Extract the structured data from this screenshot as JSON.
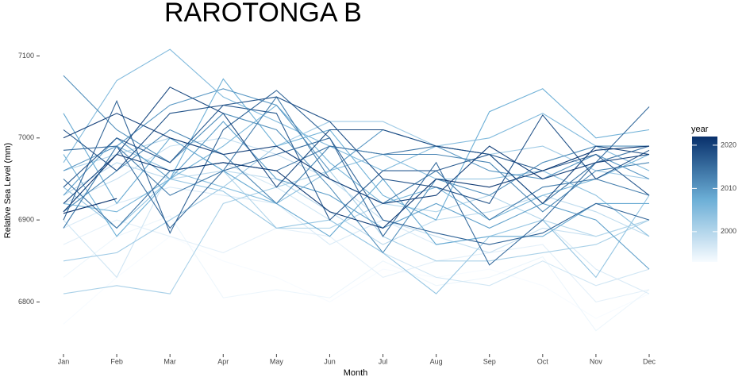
{
  "chart_data": {
    "type": "line",
    "title": "RAROTONGA B",
    "xlabel": "Month",
    "ylabel": "Relative Sea Level (mm)",
    "categories": [
      "Jan",
      "Feb",
      "Mar",
      "Apr",
      "May",
      "Jun",
      "Jul",
      "Aug",
      "Sep",
      "Oct",
      "Nov",
      "Dec"
    ],
    "ylim": [
      6752,
      7115
    ],
    "yticks": [
      6800,
      6900,
      7000,
      7100
    ],
    "colorbar": {
      "title": "year",
      "clim": [
        1993,
        2022
      ],
      "ticks": [
        2000,
        2010,
        2020
      ],
      "colors": [
        "#f7fbff",
        "#6baed6",
        "#08306b"
      ]
    },
    "series": [
      {
        "year": 1993,
        "values": [
          6773,
          6830,
          6880,
          6850,
          6830,
          6800,
          6840,
          6830,
          6840,
          6820,
          6780,
          6810
        ]
      },
      {
        "year": 1994,
        "values": [
          6830,
          6880,
          6905,
          6805,
          6815,
          6805,
          6850,
          6820,
          6830,
          6855,
          6765,
          6815
        ]
      },
      {
        "year": 1995,
        "values": [
          6870,
          6900,
          6880,
          6860,
          6890,
          6880,
          6830,
          6850,
          6860,
          6870,
          6800,
          6815
        ]
      },
      {
        "year": 1996,
        "values": [
          6890,
          6920,
          6940,
          6930,
          6920,
          6870,
          6900,
          6870,
          6880,
          6900,
          6840,
          6810
        ]
      },
      {
        "year": 1997,
        "values": [
          6900,
          6830,
          6960,
          6970,
          6940,
          6900,
          6860,
          6830,
          6820,
          6850,
          6820,
          6840
        ]
      },
      {
        "year": 1998,
        "values": [
          6920,
          6950,
          6990,
          7000,
          6980,
          6950,
          6900,
          6880,
          6860,
          6890,
          6880,
          6900
        ]
      },
      {
        "year": 1999,
        "values": [
          6930,
          6970,
          6950,
          6960,
          6950,
          6910,
          6870,
          6900,
          6910,
          6930,
          6910,
          6880
        ]
      },
      {
        "year": 2000,
        "values": [
          6960,
          6980,
          7000,
          6960,
          6890,
          6890,
          6920,
          6910,
          6930,
          6900,
          6880,
          6900
        ]
      },
      {
        "year": 2001,
        "values": [
          6810,
          6820,
          6810,
          6920,
          6940,
          6960,
          6880,
          6850,
          6850,
          6860,
          6870,
          6900
        ]
      },
      {
        "year": 2002,
        "values": [
          6850,
          6860,
          6900,
          6940,
          6990,
          7020,
          7020,
          6990,
          6980,
          6990,
          6960,
          6950
        ]
      },
      {
        "year": 2003,
        "values": [
          6940,
          6890,
          6950,
          6935,
          6890,
          6900,
          6860,
          6810,
          6880,
          6900,
          6830,
          6930
        ]
      },
      {
        "year": 2004,
        "values": [
          6890,
          6990,
          6960,
          6940,
          6920,
          6960,
          6980,
          6950,
          6950,
          6960,
          6930,
          6880
        ]
      },
      {
        "year": 2005,
        "values": [
          6970,
          7070,
          7108,
          7050,
          7020,
          6990,
          6960,
          6990,
          7000,
          7030,
          6990,
          6960
        ]
      },
      {
        "year": 2006,
        "values": [
          6920,
          6910,
          6950,
          6990,
          7040,
          6970,
          6920,
          6940,
          6900,
          6930,
          6950,
          6980
        ]
      },
      {
        "year": 2007,
        "values": [
          6980,
          6880,
          6950,
          7072,
          6990,
          7010,
          6930,
          6900,
          7032,
          7060,
          7000,
          7010
        ]
      },
      {
        "year": 2008,
        "values": [
          7030,
          6920,
          7000,
          6960,
          6920,
          6880,
          6950,
          6870,
          6880,
          6880,
          6920,
          6920
        ]
      },
      {
        "year": 2009,
        "values": [
          6930,
          7000,
          6950,
          7020,
          6950,
          6930,
          6890,
          6920,
          6890,
          6920,
          6900,
          6840
        ]
      },
      {
        "year": 2010,
        "values": [
          6960,
          6990,
          7040,
          7060,
          7040,
          6960,
          7010,
          6990,
          6960,
          6950,
          6980,
          6950
        ]
      },
      {
        "year": 2011,
        "values": [
          7076,
          7010,
          6970,
          7030,
          7010,
          6940,
          6860,
          6950,
          6930,
          6970,
          6990,
          6990
        ]
      },
      {
        "year": 2012,
        "values": [
          6910,
          6960,
          7010,
          6980,
          6920,
          6990,
          6980,
          6980,
          6970,
          6910,
          6960,
          6970
        ]
      },
      {
        "year": 2013,
        "values": [
          6890,
          6990,
          6930,
          6960,
          7050,
          6950,
          6920,
          6960,
          6900,
          6940,
          6950,
          6930
        ]
      },
      {
        "year": 2014,
        "values": [
          6950,
          6890,
          6960,
          6970,
          6960,
          6990,
          6980,
          6990,
          6980,
          6920,
          6970,
          6990
        ]
      },
      {
        "year": 2015,
        "values": [
          6985,
          6990,
          6890,
          6960,
          6980,
          7000,
          6880,
          6970,
          6845,
          6900,
          6970,
          7038
        ]
      },
      {
        "year": 2016,
        "values": [
          6900,
          7045,
          6884,
          7010,
          7058,
          7000,
          6900,
          6884,
          6870,
          6884,
          6920,
          6900
        ]
      },
      {
        "year": 2017,
        "values": [
          6940,
          7000,
          6970,
          7040,
          7030,
          6900,
          6960,
          6960,
          6980,
          6960,
          6980,
          6930
        ]
      },
      {
        "year": 2018,
        "values": [
          7010,
          6960,
          7030,
          7040,
          7050,
          7020,
          6950,
          6940,
          6920,
          7028,
          6950,
          6985
        ]
      },
      {
        "year": 2019,
        "values": [
          6920,
          6980,
          7062,
          7030,
          6940,
          7010,
          7010,
          6990,
          6980,
          6920,
          6990,
          6980
        ]
      },
      {
        "year": 2020,
        "values": [
          7000,
          7030,
          7000,
          6980,
          6990,
          6950,
          6920,
          6930,
          6990,
          6950,
          6970,
          6980
        ]
      },
      {
        "year": 2021,
        "values": [
          6910,
          6980,
          6960,
          6970,
          6960,
          6910,
          6890,
          6950,
          6940,
          6960,
          6985,
          6990
        ]
      },
      {
        "year": 2022,
        "values": [
          6908,
          6926,
          null,
          null,
          null,
          null,
          null,
          null,
          null,
          null,
          null,
          null
        ]
      }
    ]
  }
}
